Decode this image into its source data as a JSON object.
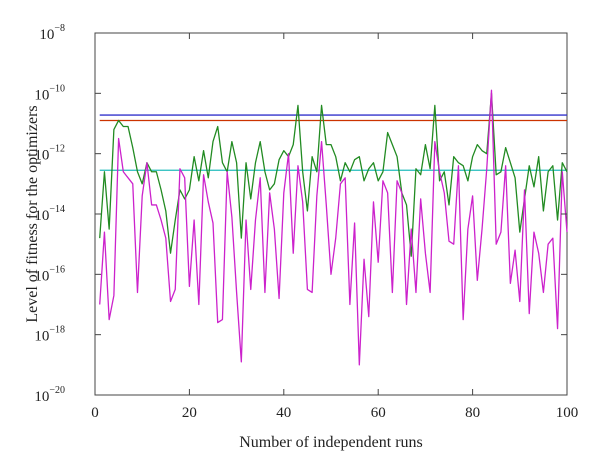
{
  "chart_data": {
    "type": "line",
    "title": "",
    "xlabel": "Number of independent runs",
    "ylabel": "Level of fitness for the optimizers",
    "xlim": [
      0,
      100
    ],
    "ylim_log10": [
      -20,
      -8
    ],
    "yscale": "log",
    "xticks": [
      {
        "value": 0,
        "label": "0"
      },
      {
        "value": 20,
        "label": "20"
      },
      {
        "value": 40,
        "label": "40"
      },
      {
        "value": 60,
        "label": "60"
      },
      {
        "value": 80,
        "label": "80"
      },
      {
        "value": 100,
        "label": "100"
      }
    ],
    "yticks": [
      {
        "exp": -20,
        "base": "10",
        "power": "−20"
      },
      {
        "exp": -18,
        "base": "10",
        "power": "−18"
      },
      {
        "exp": -16,
        "base": "10",
        "power": "−16"
      },
      {
        "exp": -14,
        "base": "10",
        "power": "−14"
      },
      {
        "exp": -12,
        "base": "10",
        "power": "−12"
      },
      {
        "exp": -10,
        "base": "10",
        "power": "−10"
      },
      {
        "exp": -8,
        "base": "10",
        "power": "−8"
      }
    ],
    "grid": false,
    "legend": "none",
    "series": [
      {
        "color": "#3333cc",
        "x_range": [
          1,
          100
        ],
        "log10_values_constant": -10.72
      },
      {
        "color": "#cc3300",
        "x_range": [
          1,
          100
        ],
        "log10_values_constant": -10.9
      },
      {
        "color": "#22bbbb",
        "x_range": [
          1,
          100
        ],
        "log10_values_constant": -12.55
      },
      {
        "color": "#228b22",
        "x_range": [
          1,
          100
        ],
        "log10_values": [
          -14.8,
          -12.6,
          -14.5,
          -11.2,
          -10.9,
          -11.1,
          -11.1,
          -11.8,
          -12.6,
          -13.0,
          -12.3,
          -12.6,
          -12.6,
          -13.2,
          -13.9,
          -15.3,
          -14.2,
          -13.2,
          -13.5,
          -13.2,
          -12.1,
          -12.9,
          -11.9,
          -12.8,
          -11.6,
          -11.1,
          -12.3,
          -12.6,
          -11.6,
          -12.3,
          -14.8,
          -12.3,
          -13.5,
          -12.3,
          -11.6,
          -12.6,
          -13.2,
          -13.0,
          -12.2,
          -11.9,
          -12.1,
          -11.7,
          -10.4,
          -12.6,
          -13.9,
          -12.1,
          -12.6,
          -10.4,
          -11.7,
          -11.7,
          -12.1,
          -12.9,
          -12.3,
          -12.6,
          -12.2,
          -12.1,
          -12.9,
          -12.5,
          -12.3,
          -12.9,
          -12.6,
          -11.3,
          -11.7,
          -12.1,
          -13.3,
          -13.7,
          -15.4,
          -12.5,
          -12.7,
          -11.7,
          -12.5,
          -10.4,
          -12.9,
          -12.6,
          -13.7,
          -12.1,
          -12.3,
          -12.4,
          -12.9,
          -12.1,
          -11.7,
          -11.9,
          -12.0,
          -10.0,
          -12.7,
          -12.6,
          -11.8,
          -12.3,
          -12.8,
          -14.6,
          -13.5,
          -12.4,
          -13.1,
          -12.1,
          -13.9,
          -12.6,
          -12.4,
          -14.2,
          -12.3,
          -12.6
        ]
      },
      {
        "color": "#cc22cc",
        "x_range": [
          1,
          100
        ],
        "log10_values": [
          -17.0,
          -14.6,
          -17.5,
          -16.7,
          -11.5,
          -12.6,
          -12.8,
          -13.0,
          -16.6,
          -13.4,
          -12.3,
          -13.7,
          -13.7,
          -14.2,
          -14.8,
          -16.9,
          -16.5,
          -12.5,
          -12.8,
          -16.4,
          -14.2,
          -17.0,
          -12.7,
          -13.6,
          -14.3,
          -17.6,
          -17.5,
          -12.6,
          -14.1,
          -16.6,
          -18.9,
          -14.2,
          -16.5,
          -14.2,
          -12.8,
          -16.6,
          -13.3,
          -14.5,
          -16.8,
          -13.3,
          -12.0,
          -15.3,
          -12.4,
          -13.6,
          -16.5,
          -16.6,
          -13.4,
          -11.6,
          -13.7,
          -16.0,
          -14.8,
          -13.0,
          -12.8,
          -17.0,
          -14.3,
          -19.0,
          -15.5,
          -17.4,
          -13.6,
          -15.6,
          -12.9,
          -13.3,
          -16.6,
          -12.9,
          -13.3,
          -17.0,
          -14.5,
          -16.6,
          -13.5,
          -15.3,
          -16.6,
          -11.6,
          -12.6,
          -13.3,
          -14.9,
          -15.0,
          -12.4,
          -17.5,
          -14.5,
          -13.4,
          -16.2,
          -14.5,
          -12.5,
          -9.9,
          -15.0,
          -14.6,
          -12.4,
          -16.3,
          -15.2,
          -16.9,
          -13.2,
          -17.3,
          -14.6,
          -15.3,
          -16.6,
          -15.0,
          -14.8,
          -17.8,
          -12.6,
          -14.6
        ]
      }
    ]
  }
}
